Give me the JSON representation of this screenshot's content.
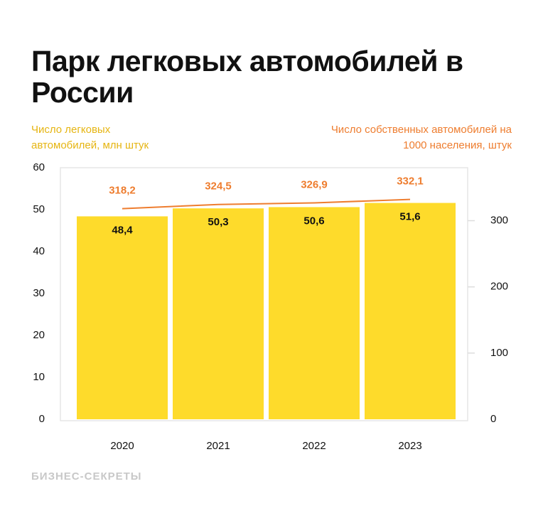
{
  "chart_data": {
    "type": "bar",
    "title": "Парк легковых автомобилей в России",
    "ylabel": "Число легковых автомобилей, млн штук",
    "y2label": "Число собственных автомобилей на 1000 населения, штук",
    "source": "БИЗНЕС-СЕКРЕТЫ",
    "categories": [
      "2020",
      "2021",
      "2022",
      "2023"
    ],
    "series": [
      {
        "type": "bar",
        "color": "#fedb2b",
        "values": [
          48.4,
          50.3,
          50.6,
          51.6
        ],
        "value_labels": [
          "48,4",
          "50,3",
          "50,6",
          "51,6"
        ]
      },
      {
        "type": "line",
        "axis": "y2",
        "color": "#ee7d2f",
        "values": [
          318.2,
          324.5,
          326.9,
          332.1
        ],
        "value_labels": [
          "318,2",
          "324,5",
          "326,9",
          "332,1"
        ]
      }
    ],
    "ylim": [
      0,
      60
    ],
    "yticks": [
      0,
      10,
      20,
      30,
      40,
      50,
      60
    ],
    "y2lim": [
      0,
      380
    ],
    "y2ticks": [
      0,
      100,
      200,
      300
    ]
  }
}
